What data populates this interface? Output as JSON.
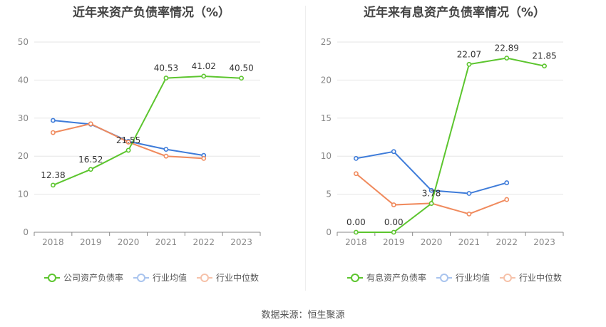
{
  "source": "数据来源：恒生聚源",
  "chart_data": [
    {
      "type": "line",
      "title": "近年来资产负债率情况（%）",
      "categories": [
        "2018",
        "2019",
        "2020",
        "2021",
        "2022",
        "2023"
      ],
      "ylim": [
        0,
        50
      ],
      "yticks": [
        0,
        10,
        20,
        30,
        40,
        50
      ],
      "grid": true,
      "legend_position": "bottom",
      "series": [
        {
          "name": "公司资产负债率",
          "color": "#5cc52e",
          "values": [
            12.38,
            16.52,
            21.55,
            40.53,
            41.02,
            40.5
          ],
          "labels": [
            "12.38",
            "16.52",
            "21.55",
            "40.53",
            "41.02",
            "40.50"
          ]
        },
        {
          "name": "行业均值",
          "color": "#3d7bd9",
          "values": [
            29.4,
            28.4,
            23.9,
            21.8,
            20.2,
            null
          ]
        },
        {
          "name": "行业中位数",
          "color": "#f08a5d",
          "values": [
            26.2,
            28.5,
            23.7,
            20.0,
            19.4,
            null
          ]
        }
      ]
    },
    {
      "type": "line",
      "title": "近年来有息资产负债率情况（%）",
      "categories": [
        "2018",
        "2019",
        "2020",
        "2021",
        "2022",
        "2023"
      ],
      "ylim": [
        0,
        25
      ],
      "yticks": [
        0,
        5,
        10,
        15,
        20,
        25
      ],
      "grid": true,
      "legend_position": "bottom",
      "series": [
        {
          "name": "有息资产负债率",
          "color": "#5cc52e",
          "values": [
            0.0,
            0.0,
            3.78,
            22.07,
            22.89,
            21.85
          ],
          "labels": [
            "0.00",
            "0.00",
            "3.78",
            "22.07",
            "22.89",
            "21.85"
          ]
        },
        {
          "name": "行业均值",
          "color": "#3d7bd9",
          "values": [
            9.7,
            10.6,
            5.5,
            5.1,
            6.5,
            null
          ]
        },
        {
          "name": "行业中位数",
          "color": "#f08a5d",
          "values": [
            7.7,
            3.6,
            3.8,
            2.4,
            4.3,
            null
          ]
        }
      ]
    }
  ]
}
